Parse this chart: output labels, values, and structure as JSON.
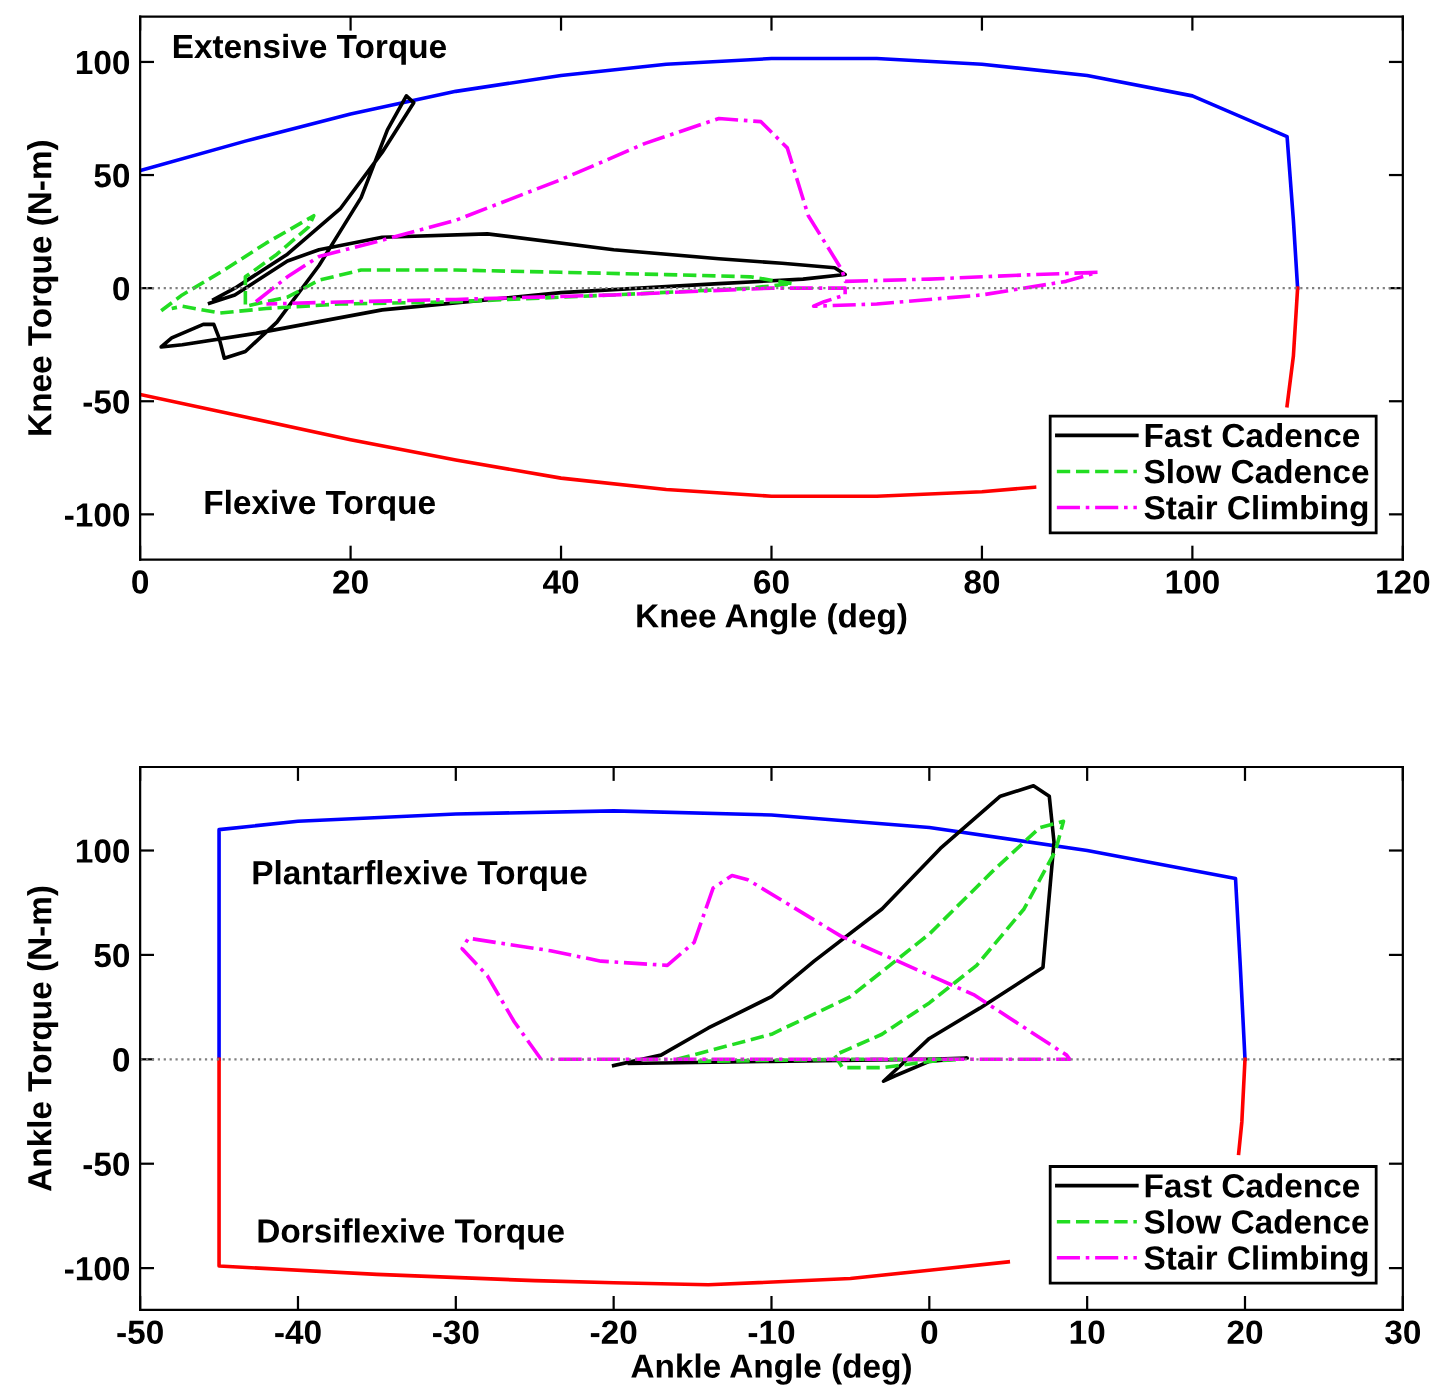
{
  "chart_data": [
    {
      "type": "line",
      "xlabel": "Knee Angle (deg)",
      "ylabel": "Knee Torque (N-m)",
      "xlim": [
        0,
        120
      ],
      "xticks": [
        0,
        20,
        40,
        60,
        80,
        100,
        120
      ],
      "ylim": [
        -120,
        120
      ],
      "yticks": [
        -100,
        -50,
        0,
        50,
        100
      ],
      "grid": false,
      "legend": "bottom right",
      "annotations": [
        "Extensive Torque",
        "Flexive Torque"
      ],
      "ref_lines": [
        {
          "axis": "y",
          "value": 0,
          "color": "#808080",
          "line_style": "dotted"
        }
      ],
      "series": [
        {
          "color": "#0000ff",
          "line_style": "solid",
          "x": [
            0,
            10,
            20,
            30,
            40,
            50,
            60,
            70,
            80,
            90,
            100,
            109,
            109.6,
            110
          ],
          "values": [
            52,
            65,
            77,
            87,
            94,
            99,
            101.5,
            101.5,
            99,
            94,
            85,
            67,
            30,
            0
          ]
        },
        {
          "color": "#ff0000",
          "line_style": "solid",
          "x": [
            0,
            10,
            20,
            30,
            40,
            50,
            60,
            70,
            80,
            85,
            97,
            109,
            109.6,
            110
          ],
          "values": [
            -47,
            -57,
            -67,
            -76,
            -84,
            -89,
            -92,
            -92,
            -90,
            -88,
            null,
            -52,
            -30,
            0
          ]
        },
        {
          "name": "Fast Cadence",
          "color": "#000000",
          "line_style": "solid",
          "x": [
            6.6,
            9,
            14,
            17,
            23,
            33,
            45,
            55,
            61,
            66,
            67,
            63,
            55,
            40,
            23,
            11,
            4,
            2,
            3,
            6,
            7,
            7.5,
            8,
            10,
            13,
            17,
            21,
            23.5,
            25.3,
            26,
            23,
            19,
            14,
            9,
            7
          ],
          "values": [
            -6.7,
            -3,
            12,
            17,
            22.5,
            24,
            17,
            13,
            11,
            9,
            6,
            4,
            2,
            -2,
            -9.6,
            -20,
            -25,
            -26,
            -22,
            -16,
            -16,
            -22,
            -31,
            -28,
            -15,
            10,
            40,
            70,
            85,
            82,
            60,
            35,
            15,
            0,
            -5
          ]
        },
        {
          "name": "Slow Cadence",
          "color": "#22dd22",
          "line_style": "dashed",
          "x": [
            2,
            4,
            8,
            12,
            16.5,
            16,
            13,
            10,
            10,
            14,
            17,
            21,
            30,
            40,
            50,
            58,
            62,
            58,
            45,
            30,
            19,
            12,
            7.6,
            4,
            3
          ],
          "values": [
            -10,
            -3,
            8,
            20,
            32,
            27,
            15,
            5,
            -8,
            -4,
            3.5,
            8,
            8,
            7,
            6,
            5,
            2,
            0,
            -3,
            -6,
            -7,
            -9,
            -11,
            -8,
            -9
          ]
        },
        {
          "name": "Stair Climbing",
          "color": "#ff00ff",
          "line_style": "dashdot",
          "x": [
            11,
            14,
            17,
            22,
            30,
            40,
            48,
            55,
            59,
            61.5,
            63.5,
            66.7,
            67,
            75,
            85,
            91,
            88,
            80,
            70,
            64,
            65,
            67,
            67,
            60,
            45,
            30,
            20,
            12
          ],
          "values": [
            -6,
            5,
            14,
            20,
            30,
            48,
            64,
            75,
            73.6,
            62,
            32,
            8,
            3,
            4,
            6,
            7,
            3,
            -3,
            -7,
            -8,
            -6,
            -3,
            0,
            0,
            -3,
            -5,
            -6,
            -7
          ]
        }
      ]
    },
    {
      "type": "line",
      "xlabel": "Ankle Angle (deg)",
      "ylabel": "Ankle Torque (N-m)",
      "xlim": [
        -50,
        30
      ],
      "xticks": [
        -50,
        -40,
        -30,
        -20,
        -10,
        0,
        10,
        20,
        30
      ],
      "ylim": [
        -120,
        140
      ],
      "yticks": [
        -100,
        -50,
        0,
        50,
        100
      ],
      "grid": false,
      "legend": "bottom right",
      "annotations": [
        "Plantarflexive Torque",
        "Dorsiflexive Torque"
      ],
      "ref_lines": [
        {
          "axis": "y",
          "value": 0,
          "color": "#808080",
          "line_style": "dotted"
        }
      ],
      "series": [
        {
          "color": "#0000ff",
          "line_style": "solid",
          "x": [
            -45,
            -45,
            -40,
            -30,
            -20,
            -10,
            0,
            10,
            19.4,
            19.7,
            20
          ],
          "values": [
            0,
            110,
            114,
            117.5,
            119,
            117,
            111,
            100,
            86.6,
            45,
            0
          ]
        },
        {
          "color": "#ff0000",
          "line_style": "solid",
          "x": [
            -45,
            -45,
            -35,
            -25,
            -20,
            -14,
            -5,
            0,
            5,
            14,
            19.6,
            19.8,
            20
          ],
          "values": [
            0,
            -99,
            -103,
            -106,
            -107,
            -108,
            -105,
            -101,
            -97,
            null,
            -45,
            -30,
            0
          ]
        },
        {
          "name": "Fast Cadence",
          "color": "#000000",
          "line_style": "solid",
          "x": [
            -20,
            -17,
            -14,
            -10,
            -7.3,
            -3,
            0.7,
            4.5,
            6.6,
            7.6,
            7.9,
            7.5,
            7.2,
            6.8,
            3.2,
            0,
            -1.4,
            -2.9,
            -2.2,
            0,
            2.4,
            0,
            -10,
            -19
          ],
          "values": [
            -3,
            2,
            15,
            30,
            47,
            72,
            101,
            126,
            131,
            126,
            104,
            70,
            44,
            42,
            24.5,
            10,
            0,
            -10.5,
            -8,
            -1,
            0.6,
            0,
            -1,
            -2
          ]
        },
        {
          "name": "Slow Cadence",
          "color": "#22dd22",
          "line_style": "dashed",
          "x": [
            -16,
            -10,
            -5,
            0,
            4,
            7,
            8.5,
            8,
            6,
            3,
            0,
            -3,
            -6,
            -5.5,
            -3,
            0,
            2,
            -5,
            -15
          ],
          "values": [
            0,
            12,
            30,
            60,
            90,
            111,
            114,
            100,
            72,
            45,
            27,
            12,
            2,
            -4,
            -4,
            -1,
            0,
            0,
            -1
          ]
        },
        {
          "name": "Stair Climbing",
          "color": "#ff00ff",
          "line_style": "dashdot",
          "x": [
            -24.6,
            -26.3,
            -28,
            -29.6,
            -29.2,
            -27.5,
            -24,
            -20.8,
            -16.6,
            -14.9,
            -13.7,
            -12.5,
            -11.5,
            -5.6,
            2.8,
            8.7,
            8.9,
            0,
            -10,
            -24
          ],
          "values": [
            0,
            18,
            40,
            53,
            58,
            56,
            52,
            47,
            45,
            56,
            82,
            88,
            86,
            59,
            31,
            2,
            0,
            0,
            0,
            0
          ]
        }
      ]
    }
  ]
}
